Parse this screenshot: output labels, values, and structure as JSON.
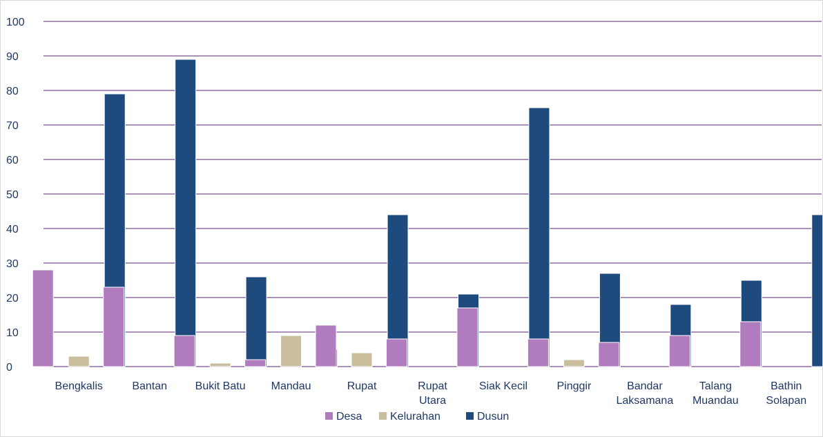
{
  "chart_data": {
    "type": "bar",
    "title": "",
    "xlabel": "",
    "ylabel": "",
    "ylim": [
      0,
      100
    ],
    "yticks": [
      0,
      10,
      20,
      30,
      40,
      50,
      60,
      70,
      80,
      90,
      100
    ],
    "grid": true,
    "legend_position": "bottom",
    "categories": [
      [
        "Bengkalis"
      ],
      [
        "Bantan"
      ],
      [
        "Bukit Batu"
      ],
      [
        "Mandau"
      ],
      [
        "Rupat"
      ],
      [
        "Rupat",
        "Utara"
      ],
      [
        "Siak Kecil"
      ],
      [
        "Pinggir"
      ],
      [
        "Bandar",
        "Laksamana"
      ],
      [
        "Talang",
        "Muandau"
      ],
      [
        "Bathin",
        "Solapan"
      ]
    ],
    "series": [
      {
        "name": "Desa",
        "color": "#b07cbd",
        "values": [
          28,
          23,
          9,
          2,
          12,
          8,
          17,
          8,
          7,
          9,
          13
        ]
      },
      {
        "name": "Kelurahan",
        "color": "#c9bf9c",
        "values": [
          3,
          0,
          1,
          9,
          4,
          0,
          0,
          2,
          0,
          0,
          0
        ]
      },
      {
        "name": "Dusun",
        "color": "#1f4a7e",
        "values": [
          79,
          89,
          26,
          5,
          44,
          21,
          75,
          27,
          18,
          25,
          44
        ]
      }
    ],
    "gridline_color": "#7a4f8c",
    "text_color": "#1f3864"
  }
}
